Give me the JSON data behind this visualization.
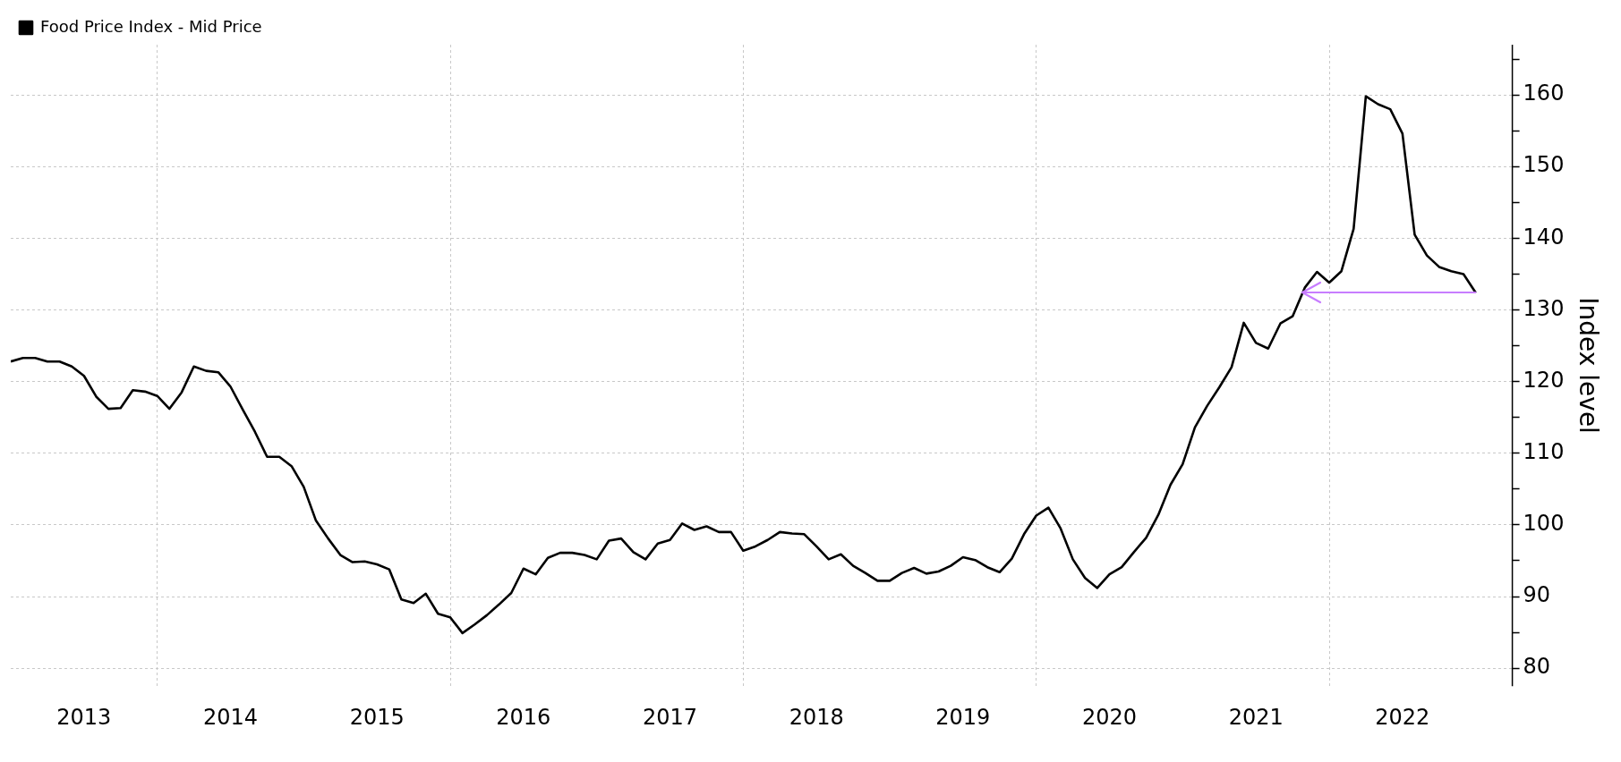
{
  "chart_data": {
    "type": "line",
    "ylabel": "Index level",
    "x": [
      "2013-01",
      "2013-02",
      "2013-03",
      "2013-04",
      "2013-05",
      "2013-06",
      "2013-07",
      "2013-08",
      "2013-09",
      "2013-10",
      "2013-11",
      "2013-12",
      "2014-01",
      "2014-02",
      "2014-03",
      "2014-04",
      "2014-05",
      "2014-06",
      "2014-07",
      "2014-08",
      "2014-09",
      "2014-10",
      "2014-11",
      "2014-12",
      "2015-01",
      "2015-02",
      "2015-03",
      "2015-04",
      "2015-05",
      "2015-06",
      "2015-07",
      "2015-08",
      "2015-09",
      "2015-10",
      "2015-11",
      "2015-12",
      "2016-01",
      "2016-02",
      "2016-03",
      "2016-04",
      "2016-05",
      "2016-06",
      "2016-07",
      "2016-08",
      "2016-09",
      "2016-10",
      "2016-11",
      "2016-12",
      "2017-01",
      "2017-02",
      "2017-03",
      "2017-04",
      "2017-05",
      "2017-06",
      "2017-07",
      "2017-08",
      "2017-09",
      "2017-10",
      "2017-11",
      "2017-12",
      "2018-01",
      "2018-02",
      "2018-03",
      "2018-04",
      "2018-05",
      "2018-06",
      "2018-07",
      "2018-08",
      "2018-09",
      "2018-10",
      "2018-11",
      "2018-12",
      "2019-01",
      "2019-02",
      "2019-03",
      "2019-04",
      "2019-05",
      "2019-06",
      "2019-07",
      "2019-08",
      "2019-09",
      "2019-10",
      "2019-11",
      "2019-12",
      "2020-01",
      "2020-02",
      "2020-03",
      "2020-04",
      "2020-05",
      "2020-06",
      "2020-07",
      "2020-08",
      "2020-09",
      "2020-10",
      "2020-11",
      "2020-12",
      "2021-01",
      "2021-02",
      "2021-03",
      "2021-04",
      "2021-05",
      "2021-06",
      "2021-07",
      "2021-08",
      "2021-09",
      "2021-10",
      "2021-11",
      "2021-12",
      "2022-01",
      "2022-02",
      "2022-03",
      "2022-04",
      "2022-05",
      "2022-06",
      "2022-07",
      "2022-08",
      "2022-09",
      "2022-10",
      "2022-11",
      "2022-12",
      "2023-01"
    ],
    "series": [
      {
        "name": "Food Price Index - Mid Price",
        "color": "#000000",
        "values": [
          122.8,
          123.3,
          123.3,
          122.8,
          122.8,
          122.1,
          120.8,
          117.9,
          116.2,
          116.3,
          118.8,
          118.6,
          118.0,
          116.2,
          118.5,
          122.1,
          121.5,
          121.3,
          119.3,
          116.1,
          113.0,
          109.5,
          109.5,
          108.2,
          105.3,
          100.6,
          98.1,
          95.8,
          94.8,
          94.9,
          94.5,
          93.8,
          89.6,
          89.1,
          90.4,
          87.6,
          87.1,
          84.9,
          86.1,
          87.4,
          88.9,
          90.5,
          93.9,
          93.1,
          95.4,
          96.1,
          96.1,
          95.8,
          95.2,
          97.8,
          98.1,
          96.2,
          95.2,
          97.4,
          97.9,
          100.2,
          99.3,
          99.8,
          99.0,
          99.0,
          96.4,
          97.0,
          97.9,
          99.0,
          98.8,
          98.7,
          97.0,
          95.2,
          95.9,
          94.3,
          93.3,
          92.2,
          92.2,
          93.3,
          94.0,
          93.2,
          93.5,
          94.3,
          95.5,
          95.1,
          94.1,
          93.4,
          95.3,
          98.7,
          101.3,
          102.4,
          99.5,
          95.2,
          92.6,
          91.2,
          93.1,
          94.1,
          96.2,
          98.2,
          101.4,
          105.6,
          108.5,
          113.6,
          116.6,
          119.2,
          122.0,
          128.2,
          125.4,
          124.6,
          128.1,
          129.1,
          133.1,
          135.3,
          133.8,
          135.4,
          141.3,
          159.8,
          158.7,
          158.0,
          154.6,
          140.5,
          137.6,
          136.0,
          135.4,
          135.0,
          132.4
        ]
      }
    ],
    "xlim": [
      "2013-01",
      "2023-04"
    ],
    "xticks": [
      {
        "value": "2013-07",
        "label": "2013"
      },
      {
        "value": "2014-07",
        "label": "2014"
      },
      {
        "value": "2015-07",
        "label": "2015"
      },
      {
        "value": "2016-07",
        "label": "2016"
      },
      {
        "value": "2017-07",
        "label": "2017"
      },
      {
        "value": "2018-07",
        "label": "2018"
      },
      {
        "value": "2019-07",
        "label": "2019"
      },
      {
        "value": "2020-07",
        "label": "2020"
      },
      {
        "value": "2021-07",
        "label": "2021"
      },
      {
        "value": "2022-07",
        "label": "2022"
      },
      {
        "value": "2014-01",
        "label": null
      },
      {
        "value": "2016-01",
        "label": null
      },
      {
        "value": "2018-01",
        "label": null
      },
      {
        "value": "2020-01",
        "label": null
      },
      {
        "value": "2022-01",
        "label": null
      }
    ],
    "ylim": [
      77.5,
      167
    ],
    "yticks": [
      80,
      {
        "value": 85,
        "label": null
      },
      90,
      {
        "value": 95,
        "label": null
      },
      100,
      {
        "value": 105,
        "label": null
      },
      110,
      {
        "value": 115,
        "label": null
      },
      120,
      {
        "value": 125,
        "label": null
      },
      130,
      {
        "value": 135,
        "label": null
      },
      140,
      {
        "value": 145,
        "label": null
      },
      150,
      {
        "value": 155,
        "label": null
      },
      160,
      {
        "value": 165,
        "label": null
      }
    ],
    "grid": true,
    "legend": "top left",
    "marker": "none",
    "line_style": "solid"
  }
}
